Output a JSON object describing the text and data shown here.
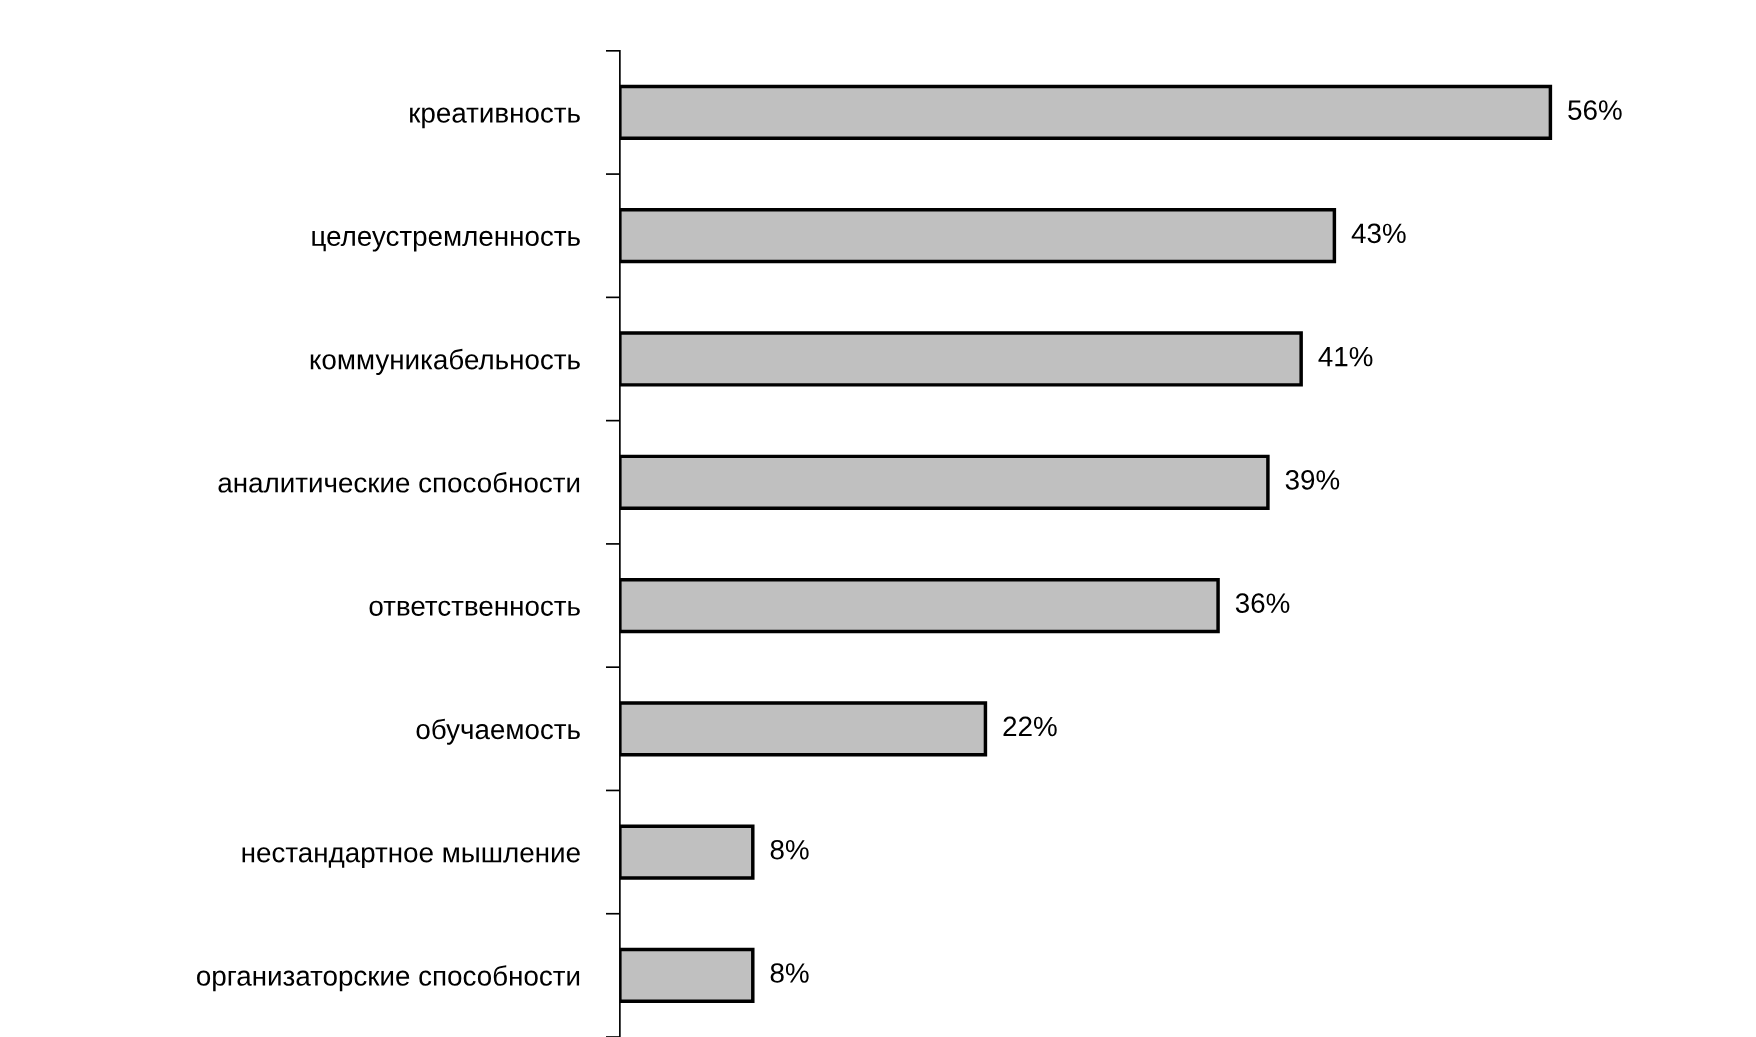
{
  "chart_data": {
    "type": "bar",
    "orientation": "horizontal",
    "categories": [
      "креативность",
      "целеустремленность",
      "коммуникабельность",
      "аналитические способности",
      "ответственность",
      "обучаемость",
      "нестандартное мышление",
      "организаторские способности"
    ],
    "values": [
      56,
      43,
      41,
      39,
      36,
      22,
      8,
      8
    ],
    "value_labels": [
      "56%",
      "43%",
      "41%",
      "39%",
      "36%",
      "22%",
      "8%",
      "8%"
    ],
    "color": "#c0c0c0",
    "tick_labels": "y"
  }
}
